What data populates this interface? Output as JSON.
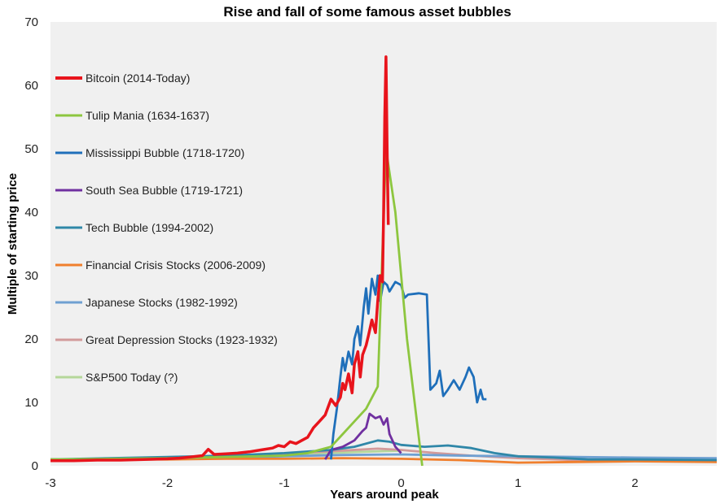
{
  "chart_data": {
    "type": "line",
    "title": "Rise and fall of some famous asset bubbles",
    "xlabel": "Years around peak",
    "ylabel": "Multiple of starting price",
    "xlim": [
      -3,
      2.7
    ],
    "ylim": [
      0,
      70
    ],
    "x_ticks": [
      -3,
      -2,
      -1,
      0,
      1,
      2
    ],
    "x_tick_labels": [
      "-3",
      "-2",
      "-1",
      "0",
      "1",
      "2"
    ],
    "y_ticks": [
      0,
      10,
      20,
      30,
      40,
      50,
      60,
      70
    ],
    "y_tick_labels": [
      "0",
      "10",
      "20",
      "30",
      "40",
      "50",
      "60",
      "70"
    ],
    "grid": false,
    "legend_position": "left",
    "series": [
      {
        "name": "Bitcoin (2014-Today)",
        "color": "#e8141c",
        "points": [
          [
            -3,
            0.8
          ],
          [
            -2.8,
            0.8
          ],
          [
            -2.6,
            0.9
          ],
          [
            -2.4,
            0.9
          ],
          [
            -2.2,
            1.0
          ],
          [
            -2.0,
            1.1
          ],
          [
            -1.9,
            1.2
          ],
          [
            -1.8,
            1.4
          ],
          [
            -1.7,
            1.6
          ],
          [
            -1.65,
            2.6
          ],
          [
            -1.6,
            1.8
          ],
          [
            -1.5,
            1.9
          ],
          [
            -1.4,
            2.0
          ],
          [
            -1.3,
            2.2
          ],
          [
            -1.2,
            2.5
          ],
          [
            -1.1,
            2.8
          ],
          [
            -1.05,
            3.2
          ],
          [
            -1.0,
            3.0
          ],
          [
            -0.95,
            3.8
          ],
          [
            -0.9,
            3.5
          ],
          [
            -0.85,
            4.0
          ],
          [
            -0.8,
            4.5
          ],
          [
            -0.75,
            6.0
          ],
          [
            -0.7,
            7.0
          ],
          [
            -0.65,
            8.0
          ],
          [
            -0.6,
            10.5
          ],
          [
            -0.56,
            9.5
          ],
          [
            -0.52,
            10.8
          ],
          [
            -0.5,
            13.0
          ],
          [
            -0.48,
            12.0
          ],
          [
            -0.45,
            14.5
          ],
          [
            -0.42,
            11.5
          ],
          [
            -0.4,
            16.0
          ],
          [
            -0.37,
            18.0
          ],
          [
            -0.35,
            14.0
          ],
          [
            -0.33,
            17.5
          ],
          [
            -0.3,
            19.0
          ],
          [
            -0.28,
            20.5
          ],
          [
            -0.25,
            23.0
          ],
          [
            -0.22,
            21.0
          ],
          [
            -0.2,
            26.0
          ],
          [
            -0.18,
            30.0
          ],
          [
            -0.16,
            29.0
          ],
          [
            -0.15,
            40.0
          ],
          [
            -0.14,
            55.0
          ],
          [
            -0.13,
            64.5
          ],
          [
            -0.12,
            50.0
          ],
          [
            -0.11,
            38.0
          ]
        ]
      },
      {
        "name": "Tulip Mania (1634-1637)",
        "color": "#8dc63f",
        "points": [
          [
            -3,
            1.0
          ],
          [
            -2.5,
            1.1
          ],
          [
            -2.0,
            1.2
          ],
          [
            -1.5,
            1.4
          ],
          [
            -1.0,
            1.6
          ],
          [
            -0.8,
            2.0
          ],
          [
            -0.6,
            3.0
          ],
          [
            -0.5,
            5.0
          ],
          [
            -0.4,
            7.0
          ],
          [
            -0.3,
            9.0
          ],
          [
            -0.2,
            12.5
          ],
          [
            -0.13,
            50.0
          ],
          [
            -0.05,
            40.0
          ],
          [
            0.05,
            20.0
          ],
          [
            0.18,
            0.0
          ]
        ]
      },
      {
        "name": "Mississippi Bubble (1718-1720)",
        "color": "#1f6fba",
        "points": [
          [
            -0.6,
            1.0
          ],
          [
            -0.58,
            5.0
          ],
          [
            -0.55,
            9.0
          ],
          [
            -0.52,
            14.0
          ],
          [
            -0.5,
            17.0
          ],
          [
            -0.48,
            15.0
          ],
          [
            -0.45,
            18.0
          ],
          [
            -0.42,
            16.0
          ],
          [
            -0.4,
            20.0
          ],
          [
            -0.37,
            22.0
          ],
          [
            -0.35,
            19.0
          ],
          [
            -0.32,
            25.0
          ],
          [
            -0.3,
            28.0
          ],
          [
            -0.28,
            24.0
          ],
          [
            -0.25,
            29.5
          ],
          [
            -0.22,
            27.0
          ],
          [
            -0.2,
            30.0
          ],
          [
            -0.18,
            26.0
          ],
          [
            -0.15,
            29.0
          ],
          [
            -0.12,
            28.5
          ],
          [
            -0.1,
            27.5
          ],
          [
            -0.05,
            29.0
          ],
          [
            0.0,
            28.5
          ],
          [
            0.03,
            26.5
          ],
          [
            0.06,
            27.0
          ],
          [
            0.15,
            27.2
          ],
          [
            0.22,
            27.0
          ],
          [
            0.24,
            17.0
          ],
          [
            0.25,
            12.0
          ],
          [
            0.3,
            13.0
          ],
          [
            0.33,
            15.0
          ],
          [
            0.36,
            11.0
          ],
          [
            0.4,
            12.0
          ],
          [
            0.45,
            13.5
          ],
          [
            0.5,
            12.0
          ],
          [
            0.55,
            14.0
          ],
          [
            0.58,
            15.5
          ],
          [
            0.62,
            14.0
          ],
          [
            0.65,
            10.0
          ],
          [
            0.68,
            12.0
          ],
          [
            0.7,
            10.5
          ],
          [
            0.73,
            10.5
          ]
        ]
      },
      {
        "name": "South Sea Bubble (1719-1721)",
        "color": "#7030a0",
        "points": [
          [
            -0.65,
            1.0
          ],
          [
            -0.6,
            2.5
          ],
          [
            -0.5,
            3.0
          ],
          [
            -0.4,
            4.0
          ],
          [
            -0.33,
            5.5
          ],
          [
            -0.3,
            6.0
          ],
          [
            -0.27,
            8.2
          ],
          [
            -0.22,
            7.5
          ],
          [
            -0.18,
            7.8
          ],
          [
            -0.15,
            6.5
          ],
          [
            -0.12,
            7.5
          ],
          [
            -0.1,
            5.0
          ],
          [
            -0.05,
            3.0
          ],
          [
            0.0,
            2.0
          ]
        ]
      },
      {
        "name": "Tech Bubble (1994-2002)",
        "color": "#2f87a8",
        "points": [
          [
            -3,
            1.0
          ],
          [
            -2.5,
            1.2
          ],
          [
            -2.0,
            1.4
          ],
          [
            -1.5,
            1.6
          ],
          [
            -1.0,
            2.0
          ],
          [
            -0.6,
            2.5
          ],
          [
            -0.4,
            3.0
          ],
          [
            -0.2,
            4.0
          ],
          [
            -0.1,
            3.8
          ],
          [
            0.0,
            3.3
          ],
          [
            0.2,
            3.0
          ],
          [
            0.4,
            3.2
          ],
          [
            0.6,
            2.8
          ],
          [
            0.8,
            2.0
          ],
          [
            1.0,
            1.5
          ],
          [
            1.3,
            1.3
          ],
          [
            1.6,
            1.0
          ],
          [
            2.0,
            1.0
          ],
          [
            2.7,
            0.9
          ]
        ]
      },
      {
        "name": "Financial Crisis Stocks (2006-2009)",
        "color": "#f07f2d",
        "points": [
          [
            -3,
            1.0
          ],
          [
            -2.5,
            1.0
          ],
          [
            -2.0,
            1.0
          ],
          [
            -1.5,
            1.1
          ],
          [
            -1.0,
            1.1
          ],
          [
            -0.5,
            1.2
          ],
          [
            0.0,
            1.1
          ],
          [
            0.5,
            0.9
          ],
          [
            1.0,
            0.5
          ],
          [
            1.5,
            0.6
          ],
          [
            2.0,
            0.7
          ],
          [
            2.7,
            0.6
          ]
        ]
      },
      {
        "name": "Japanese Stocks (1982-1992)",
        "color": "#6fa0d2",
        "points": [
          [
            -3,
            1.0
          ],
          [
            -2.5,
            1.1
          ],
          [
            -2.0,
            1.2
          ],
          [
            -1.5,
            1.3
          ],
          [
            -1.0,
            1.5
          ],
          [
            -0.5,
            1.7
          ],
          [
            0.0,
            1.8
          ],
          [
            0.5,
            1.6
          ],
          [
            1.0,
            1.5
          ],
          [
            1.5,
            1.4
          ],
          [
            2.0,
            1.3
          ],
          [
            2.7,
            1.2
          ]
        ]
      },
      {
        "name": "Great Depression Stocks (1923-1932)",
        "color": "#d29a9a",
        "points": [
          [
            -3,
            1.0
          ],
          [
            -2.5,
            1.1
          ],
          [
            -2.0,
            1.3
          ],
          [
            -1.5,
            1.5
          ],
          [
            -1.0,
            1.9
          ],
          [
            -0.5,
            2.4
          ],
          [
            -0.2,
            2.7
          ],
          [
            0.0,
            2.5
          ],
          [
            0.3,
            2.0
          ],
          [
            0.6,
            1.6
          ],
          [
            1.0,
            1.2
          ],
          [
            1.5,
            0.9
          ],
          [
            2.0,
            0.8
          ],
          [
            2.7,
            0.7
          ]
        ]
      },
      {
        "name": "S&P500 Today (?)",
        "color": "#b5d79a",
        "points": [
          [
            -3,
            1.0
          ],
          [
            -2.5,
            1.1
          ],
          [
            -2.0,
            1.3
          ],
          [
            -1.5,
            1.5
          ],
          [
            -1.0,
            1.8
          ],
          [
            -0.5,
            2.1
          ],
          [
            0.0,
            2.4
          ]
        ]
      }
    ]
  }
}
